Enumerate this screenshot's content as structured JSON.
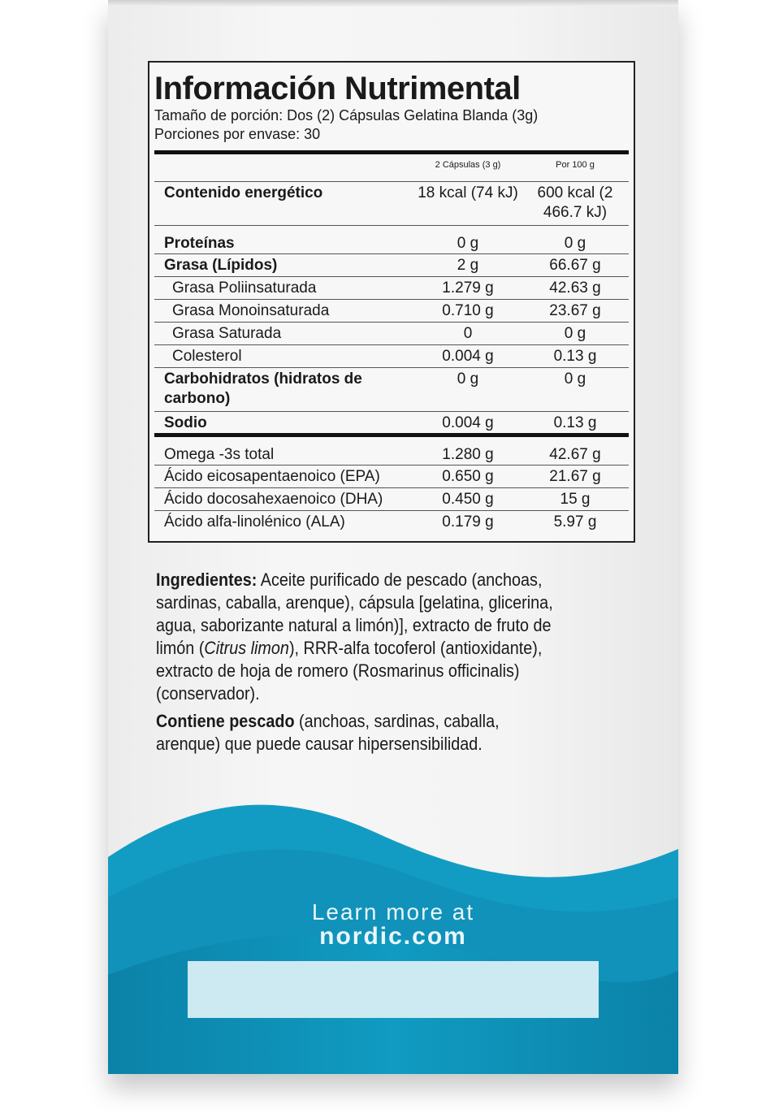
{
  "label": {
    "title": "Información Nutrimental",
    "serving": "Tamaño de porción: Dos (2) Cápsulas Gelatina Blanda (3g)",
    "portions": "Porciones por envase: 30",
    "col1": "2 Cápsulas (3 g)",
    "col2": "Por 100 g",
    "rows": [
      {
        "name": "Contenido energético",
        "a": "18 kcal (74 kJ)",
        "b": "600 kcal (2 466.7 kJ)"
      },
      {
        "name": "Proteínas",
        "a": "0 g",
        "b": "0 g"
      },
      {
        "name": "Grasa (Lípidos)",
        "a": "2 g",
        "b": "66.67 g"
      },
      {
        "name": "Grasa Poliinsaturada",
        "a": "1.279 g",
        "b": "42.63 g"
      },
      {
        "name": "Grasa Monoinsaturada",
        "a": "0.710 g",
        "b": "23.67 g"
      },
      {
        "name": "Grasa Saturada",
        "a": "0",
        "b": "0 g"
      },
      {
        "name": "Colesterol",
        "a": "0.004 g",
        "b": "0.13 g"
      },
      {
        "name": "Carbohidratos (hidratos de carbono)",
        "a": "0 g",
        "b": "0 g"
      },
      {
        "name": "Sodio",
        "a": "0.004 g",
        "b": "0.13 g"
      },
      {
        "name": "Omega -3s total",
        "a": "1.280 g",
        "b": "42.67 g"
      },
      {
        "name": "Ácido eicosapentaenoico (EPA)",
        "a": "0.650 g",
        "b": "21.67 g"
      },
      {
        "name": "Ácido docosahexaenoico (DHA)",
        "a": "0.450 g",
        "b": "15 g"
      },
      {
        "name": "Ácido alfa-linolénico (ALA)",
        "a": "0.179 g",
        "b": "5.97 g"
      }
    ]
  },
  "ingredients": {
    "label": "Ingredientes:",
    "text1": " Aceite purificado de pescado (anchoas, sardinas, caballa, arenque), cápsula [gelatina, glicerina, agua, saborizante natural a limón)], extracto de fruto de limón (",
    "italic": "Citrus limon",
    "text2": "), RRR-alfa tocoferol (antioxidante), extracto de hoja de romero (Rosmarinus officinalis) (conservador).",
    "allergen_label": "Contiene pescado",
    "allergen_text": " (anchoas, sardinas, caballa, arenque) que puede causar hipersensibilidad."
  },
  "footer": {
    "line1": "Learn more at",
    "line2": "nordic.com"
  },
  "colors": {
    "blue": "#0f93ba",
    "dark_blue": "#0a7ea3"
  }
}
